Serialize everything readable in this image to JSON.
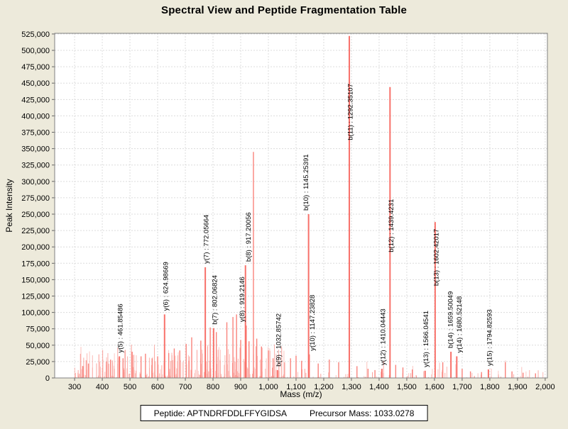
{
  "title": "Spectral View and Peptide Fragmentation Table",
  "footer": {
    "peptide": "Peptide: APTNDRFDDLFFYGIDSA",
    "precursor": "Precursor Mass: 1033.0278"
  },
  "colors": {
    "background": "#EDEADB",
    "plot_background": "#FFFFFF",
    "plot_border": "#808080",
    "gridline": "#DCDCDC",
    "bar_main": "#F8716A",
    "bar_mid": "#F9837C",
    "bar_noise": "#FA9D96",
    "text": "#000000"
  },
  "chart_data": {
    "type": "bar",
    "title": "Spectral View and Peptide Fragmentation Table",
    "xlabel": "Mass (m/z)",
    "ylabel": "Peak Intensity",
    "x_axis": {
      "tick_min": 300,
      "tick_max": 2000,
      "tick_step": 100,
      "domain": [
        228,
        2008
      ]
    },
    "y_axis": {
      "tick_min": 0,
      "tick_max": 525000,
      "tick_step": 25000,
      "domain": [
        0,
        526000
      ]
    },
    "grid": "dashed",
    "labeled_peaks": [
      {
        "ion": "y(5)",
        "label": "y(5) : 461.85486",
        "mz": 461.85486,
        "intensity": 33000,
        "label_dx": 0,
        "label_drop": 0
      },
      {
        "ion": "y(6)",
        "label": "y(6) : 624.98669",
        "mz": 624.98669,
        "intensity": 97000,
        "label_dx": 0,
        "label_drop": 0
      },
      {
        "ion": "y(7)",
        "label": "y(7) : 772.05664",
        "mz": 772.05664,
        "intensity": 169000,
        "label_dx": 0,
        "label_drop": 0
      },
      {
        "ion": "b(7)",
        "label": "b(7) : 802.06824",
        "mz": 802.06824,
        "intensity": 76000,
        "label_dx": 0,
        "label_drop": 0
      },
      {
        "ion": "b(8)",
        "label": "b(8) : 917.20056",
        "mz": 917.20056,
        "intensity": 172000,
        "label_dx": 3,
        "label_drop": 0
      },
      {
        "ion": "y(8)",
        "label": "y(8) : 919.2146",
        "mz": 919.2146,
        "intensity": 80000,
        "label_dx": -7,
        "label_drop": 0
      },
      {
        "ion": "b(9)",
        "label": "b(9) : 1032.85742",
        "mz": 1032.85742,
        "intensity": 12000,
        "label_dx": 0,
        "label_drop": 0
      },
      {
        "ion": "b(10)",
        "label": "b(10) : 1145.25391",
        "mz": 1145.25391,
        "intensity": 250000,
        "label_dx": -5,
        "label_drop": 0
      },
      {
        "ion": "y(10)",
        "label": "y(10) : 1147.23828",
        "mz": 1147.23828,
        "intensity": 36000,
        "label_dx": 3,
        "label_drop": 0
      },
      {
        "ion": "b(11)",
        "label": "b(11) : 1292.35107",
        "mz": 1292.35107,
        "intensity": 522000,
        "label_dx": 0,
        "label_drop": 152
      },
      {
        "ion": "y(12)",
        "label": "y(12) : 1410.04443",
        "mz": 1410.04443,
        "intensity": 14000,
        "label_dx": 0,
        "label_drop": 0
      },
      {
        "ion": "b(12)",
        "label": "b(12) : 1439.4231",
        "mz": 1439.4231,
        "intensity": 444000,
        "label_dx": 0,
        "label_drop": 238
      },
      {
        "ion": "y(13)",
        "label": "y(13) : 1566.04541",
        "mz": 1566.04541,
        "intensity": 11000,
        "label_dx": 0,
        "label_drop": 0
      },
      {
        "ion": "b(13)",
        "label": "b(13) : 1602.42017",
        "mz": 1602.42017,
        "intensity": 238000,
        "label_dx": 0,
        "label_drop": 95
      },
      {
        "ion": "b(14)",
        "label": "b(14) : 1659.50049",
        "mz": 1659.50049,
        "intensity": 40000,
        "label_dx": -2,
        "label_drop": 0
      },
      {
        "ion": "y(14)",
        "label": "y(14) : 1680.52148",
        "mz": 1680.52148,
        "intensity": 33000,
        "label_dx": 2,
        "label_drop": 0
      },
      {
        "ion": "y(15)",
        "label": "y(15) : 1794.82593",
        "mz": 1794.82593,
        "intensity": 13000,
        "label_dx": 0,
        "label_drop": 0
      }
    ],
    "unlabeled_peaks": [
      {
        "mz": 946,
        "intensity": 345000
      },
      {
        "mz": 885,
        "intensity": 97000
      },
      {
        "mz": 872,
        "intensity": 93000
      },
      {
        "mz": 850,
        "intensity": 85000
      },
      {
        "mz": 812,
        "intensity": 70000
      },
      {
        "mz": 790,
        "intensity": 77000
      },
      {
        "mz": 756,
        "intensity": 57000
      },
      {
        "mz": 723,
        "intensity": 62000
      },
      {
        "mz": 703,
        "intensity": 52000
      },
      {
        "mz": 930,
        "intensity": 56000
      },
      {
        "mz": 900,
        "intensity": 58000
      },
      {
        "mz": 958,
        "intensity": 60000
      },
      {
        "mz": 975,
        "intensity": 48000
      },
      {
        "mz": 1000,
        "intensity": 42000
      },
      {
        "mz": 1017,
        "intensity": 30000
      },
      {
        "mz": 660,
        "intensity": 45000
      },
      {
        "mz": 680,
        "intensity": 42000
      },
      {
        "mz": 640,
        "intensity": 38000
      },
      {
        "mz": 600,
        "intensity": 33000
      },
      {
        "mz": 580,
        "intensity": 30000
      },
      {
        "mz": 556,
        "intensity": 37000
      },
      {
        "mz": 540,
        "intensity": 33000
      },
      {
        "mz": 508,
        "intensity": 40000
      },
      {
        "mz": 475,
        "intensity": 30000
      },
      {
        "mz": 430,
        "intensity": 28000
      },
      {
        "mz": 415,
        "intensity": 25000
      },
      {
        "mz": 350,
        "intensity": 22000
      },
      {
        "mz": 330,
        "intensity": 18000
      },
      {
        "mz": 1080,
        "intensity": 30000
      },
      {
        "mz": 1100,
        "intensity": 34000
      },
      {
        "mz": 1120,
        "intensity": 26000
      },
      {
        "mz": 1180,
        "intensity": 22000
      },
      {
        "mz": 1220,
        "intensity": 28000
      },
      {
        "mz": 1254,
        "intensity": 24000
      },
      {
        "mz": 1320,
        "intensity": 18000
      },
      {
        "mz": 1360,
        "intensity": 14000
      },
      {
        "mz": 1385,
        "intensity": 12000
      },
      {
        "mz": 1460,
        "intensity": 20000
      },
      {
        "mz": 1486,
        "intensity": 16000
      },
      {
        "mz": 1520,
        "intensity": 13000
      },
      {
        "mz": 1630,
        "intensity": 24000
      },
      {
        "mz": 1700,
        "intensity": 14000
      },
      {
        "mz": 1730,
        "intensity": 10000
      },
      {
        "mz": 1770,
        "intensity": 9000
      },
      {
        "mz": 1856,
        "intensity": 24000
      },
      {
        "mz": 1880,
        "intensity": 10000
      },
      {
        "mz": 1920,
        "intensity": 8000
      },
      {
        "mz": 1965,
        "intensity": 7000
      }
    ],
    "noise": {
      "seed": 7,
      "low": {
        "count": 300,
        "mz_min": 300,
        "mz_max": 1060,
        "max_intensity": 50000,
        "exp": 2.3
      },
      "high": {
        "count": 90,
        "mz_min": 1060,
        "mz_max": 2000,
        "max_intensity": 26000,
        "exp": 2.6
      }
    }
  }
}
